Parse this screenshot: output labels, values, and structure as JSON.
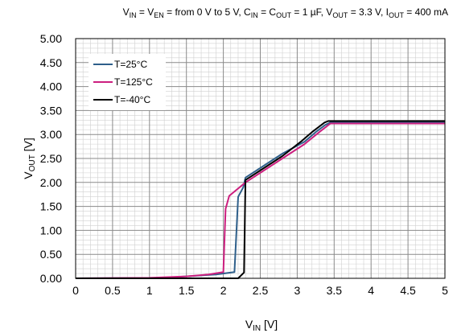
{
  "chart_data": {
    "type": "line",
    "title_parts": {
      "vin": "V",
      "vin_sub": "IN",
      "eq1": " = V",
      "en_sub": "EN",
      "range": " = from 0 V to 5 V, C",
      "cin_sub": "IN",
      "eq2": " = C",
      "cout_sub": "OUT",
      "cap": " = 1 µF, V",
      "vout_sub": "OUT",
      "vout_val": " = 3.3 V, I",
      "iout_sub": "OUT",
      "iout_val": " = 400 mA"
    },
    "xlabel": {
      "main": "V",
      "sub": "IN",
      "unit": " [V]"
    },
    "ylabel": {
      "main": "V",
      "sub": "OUT",
      "unit": " [V]"
    },
    "xlim": [
      0,
      5
    ],
    "ylim": [
      0,
      5
    ],
    "x_ticks": [
      "0",
      "0.5",
      "1",
      "1.5",
      "2",
      "2.5",
      "3",
      "3.5",
      "4",
      "4.5",
      "5"
    ],
    "y_ticks": [
      "0.00",
      "0.50",
      "1.00",
      "1.50",
      "2.00",
      "2.50",
      "3.00",
      "3.50",
      "4.00",
      "4.50",
      "5.00"
    ],
    "grid": true,
    "legend_position": "top-left",
    "series": [
      {
        "name": "T=25°C",
        "color": "#2e5f8a",
        "points": [
          [
            0,
            0
          ],
          [
            1.2,
            0.01
          ],
          [
            1.6,
            0.05
          ],
          [
            1.9,
            0.08
          ],
          [
            2.15,
            0.13
          ],
          [
            2.2,
            1.7
          ],
          [
            2.27,
            1.9
          ],
          [
            2.3,
            2.1
          ],
          [
            2.5,
            2.3
          ],
          [
            2.8,
            2.6
          ],
          [
            3.1,
            2.85
          ],
          [
            3.25,
            3.05
          ],
          [
            3.38,
            3.2
          ],
          [
            3.45,
            3.25
          ],
          [
            5,
            3.25
          ]
        ]
      },
      {
        "name": "T=125°C",
        "color": "#cc1f7f",
        "points": [
          [
            0,
            0
          ],
          [
            1.0,
            0.01
          ],
          [
            1.5,
            0.04
          ],
          [
            1.8,
            0.08
          ],
          [
            2.0,
            0.13
          ],
          [
            2.03,
            1.45
          ],
          [
            2.08,
            1.72
          ],
          [
            2.3,
            2.0
          ],
          [
            2.6,
            2.3
          ],
          [
            2.9,
            2.6
          ],
          [
            3.1,
            2.8
          ],
          [
            3.3,
            3.05
          ],
          [
            3.45,
            3.23
          ],
          [
            5,
            3.23
          ]
        ]
      },
      {
        "name": "T=-40°C",
        "color": "#000000",
        "points": [
          [
            0,
            0
          ],
          [
            2.2,
            0.0
          ],
          [
            2.28,
            0.12
          ],
          [
            2.3,
            2.05
          ],
          [
            2.5,
            2.25
          ],
          [
            2.8,
            2.55
          ],
          [
            3.05,
            2.85
          ],
          [
            3.2,
            3.05
          ],
          [
            3.37,
            3.25
          ],
          [
            3.42,
            3.28
          ],
          [
            5,
            3.28
          ]
        ]
      }
    ]
  }
}
